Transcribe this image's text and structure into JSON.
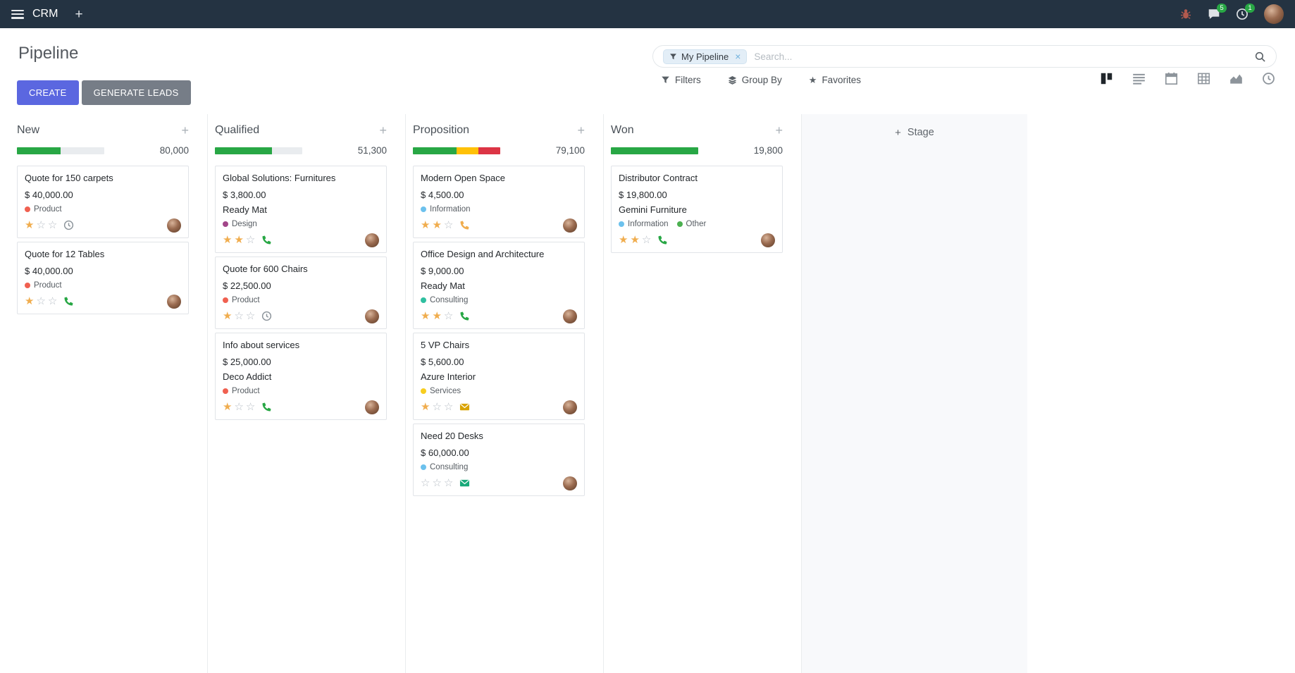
{
  "topbar": {
    "app_name": "CRM",
    "messages_badge": "5",
    "activities_badge": "1"
  },
  "control_panel": {
    "breadcrumb": "Pipeline",
    "buttons": {
      "create": "CREATE",
      "generate_leads": "GENERATE LEADS"
    },
    "search": {
      "facet_label": "My Pipeline",
      "placeholder": "Search..."
    },
    "menus": {
      "filters": "Filters",
      "group_by": "Group By",
      "favorites": "Favorites"
    }
  },
  "icons": {
    "plus": "+",
    "close": "×",
    "star_filled": "★",
    "star_empty": "☆"
  },
  "colors": {
    "topbar_bg": "#243342",
    "create_button": "#5b67e0",
    "generate_button": "#767d87",
    "badge_green": "#28a745",
    "progress_green": "#28a745",
    "progress_yellow": "#ffc107",
    "progress_red": "#dc3545",
    "star_gold": "#f0ad4e"
  },
  "board": {
    "add_stage_label": "Stage",
    "columns": [
      {
        "name": "New",
        "total": "80,000",
        "progress": [
          {
            "color": "#28a745",
            "pct": 50
          }
        ],
        "cards": [
          {
            "title": "Quote for 150 carpets",
            "amount": "$ 40,000.00",
            "partner": null,
            "tags": [
              {
                "label": "Product",
                "color": "#f06050"
              }
            ],
            "stars": 1,
            "activity": {
              "type": "clock",
              "color": "#8a9299"
            }
          },
          {
            "title": "Quote for 12 Tables",
            "amount": "$ 40,000.00",
            "partner": null,
            "tags": [
              {
                "label": "Product",
                "color": "#f06050"
              }
            ],
            "stars": 1,
            "activity": {
              "type": "phone",
              "color": "#28a745"
            }
          }
        ]
      },
      {
        "name": "Qualified",
        "total": "51,300",
        "progress": [
          {
            "color": "#28a745",
            "pct": 65
          }
        ],
        "cards": [
          {
            "title": "Global Solutions: Furnitures",
            "amount": "$ 3,800.00",
            "partner": "Ready Mat",
            "tags": [
              {
                "label": "Design",
                "color": "#a24689"
              }
            ],
            "stars": 2,
            "activity": {
              "type": "phone",
              "color": "#28a745"
            }
          },
          {
            "title": "Quote for 600 Chairs",
            "amount": "$ 22,500.00",
            "partner": null,
            "tags": [
              {
                "label": "Product",
                "color": "#f06050"
              }
            ],
            "stars": 1,
            "activity": {
              "type": "clock",
              "color": "#8a9299"
            }
          },
          {
            "title": "Info about services",
            "amount": "$ 25,000.00",
            "partner": "Deco Addict",
            "tags": [
              {
                "label": "Product",
                "color": "#f06050"
              }
            ],
            "stars": 1,
            "activity": {
              "type": "phone",
              "color": "#28a745"
            }
          }
        ]
      },
      {
        "name": "Proposition",
        "total": "79,100",
        "progress": [
          {
            "color": "#28a745",
            "pct": 50
          },
          {
            "color": "#ffc107",
            "pct": 25
          },
          {
            "color": "#dc3545",
            "pct": 25
          }
        ],
        "cards": [
          {
            "title": "Modern Open Space",
            "amount": "$ 4,500.00",
            "partner": null,
            "tags": [
              {
                "label": "Information",
                "color": "#6cc1ed"
              }
            ],
            "stars": 2,
            "activity": {
              "type": "phone",
              "color": "#f0ad4e"
            }
          },
          {
            "title": "Office Design and Architecture",
            "amount": "$ 9,000.00",
            "partner": "Ready Mat",
            "tags": [
              {
                "label": "Consulting",
                "color": "#2fbfa0"
              }
            ],
            "stars": 2,
            "activity": {
              "type": "phone",
              "color": "#28a745"
            }
          },
          {
            "title": "5 VP Chairs",
            "amount": "$ 5,600.00",
            "partner": "Azure Interior",
            "tags": [
              {
                "label": "Services",
                "color": "#f7cd1f"
              }
            ],
            "stars": 1,
            "activity": {
              "type": "envelope",
              "color": "#d9a300"
            }
          },
          {
            "title": "Need 20 Desks",
            "amount": "$ 60,000.00",
            "partner": null,
            "tags": [
              {
                "label": "Consulting",
                "color": "#6cc1ed"
              }
            ],
            "stars": 0,
            "activity": {
              "type": "envelope",
              "color": "#18a979"
            }
          }
        ]
      },
      {
        "name": "Won",
        "total": "19,800",
        "progress": [
          {
            "color": "#28a745",
            "pct": 100
          }
        ],
        "cards": [
          {
            "title": "Distributor Contract",
            "amount": "$ 19,800.00",
            "partner": "Gemini Furniture",
            "tags": [
              {
                "label": "Information",
                "color": "#6cc1ed"
              },
              {
                "label": "Other",
                "color": "#4cb050"
              }
            ],
            "stars": 2,
            "activity": {
              "type": "phone",
              "color": "#28a745"
            }
          }
        ]
      }
    ]
  }
}
